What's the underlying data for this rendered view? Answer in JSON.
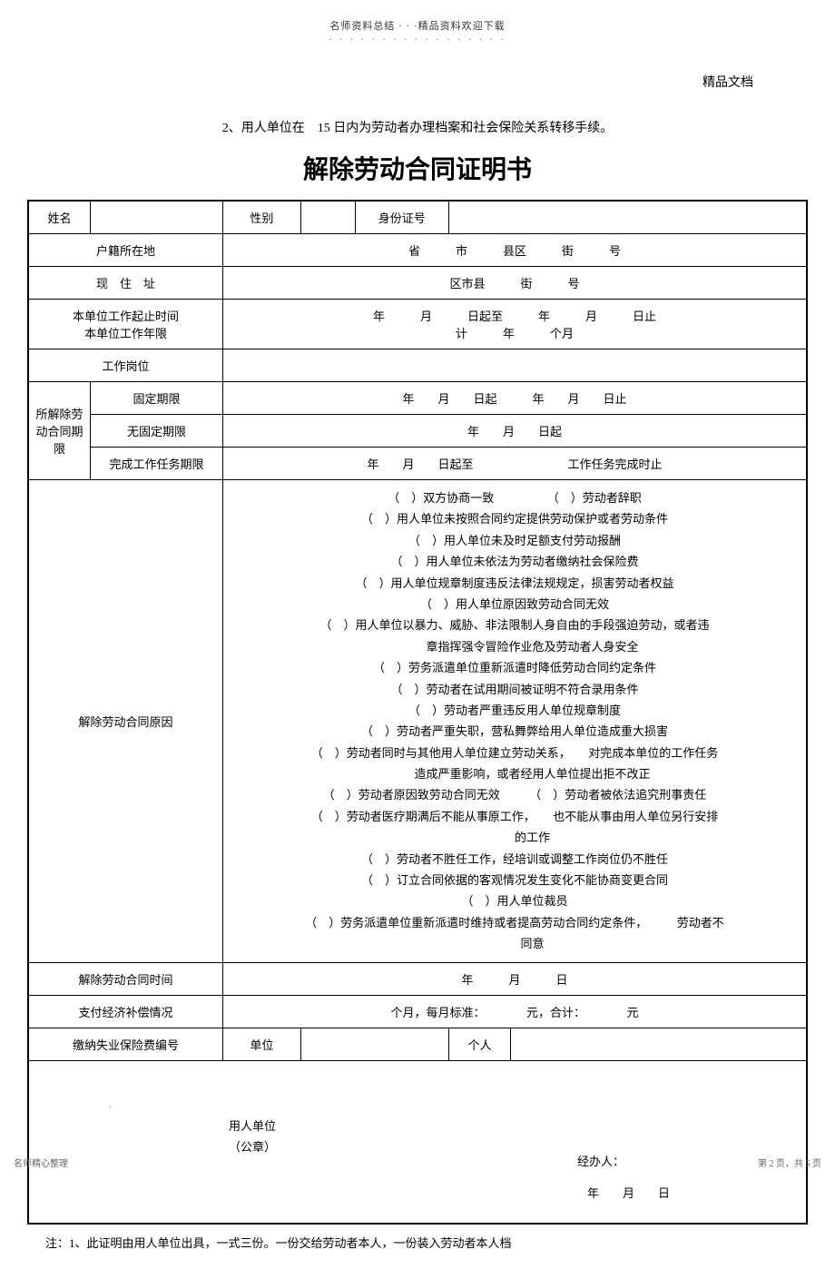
{
  "header": {
    "small_text": "名师资料总结 · · ·精品资料欢迎下载",
    "dots": "· · · · · · · · · · · · · · · · ·"
  },
  "corner": "精品文档",
  "intro": "2、用人单位在　15 日内为劳动者办理档案和社会保险关系转移手续。",
  "title": "解除劳动合同证明书",
  "row1": {
    "name_label": "姓名",
    "gender_label": "性别",
    "id_label": "身份证号"
  },
  "row2": {
    "label": "户籍所在地",
    "content": "省　　　市　　　县区　　　街　　　号"
  },
  "row3": {
    "label": "现　住　址",
    "content": "区市县　　　街　　　号"
  },
  "row4": {
    "label1": "本单位工作起止时间",
    "label2": "本单位工作年限",
    "content1": "年　　　月　　　日起至　　　年　　　月　　　日止",
    "content2": "计　　　年　　　个月"
  },
  "row5": {
    "label": "工作岗位"
  },
  "contract_period": {
    "main_label": "所解除劳动合同期限",
    "fixed_label": "固定期限",
    "fixed_content": "年　　月　　日起　　　年　　月　　日止",
    "unfixed_label": "无固定期限",
    "unfixed_content": "年　　月　　日起",
    "task_label": "完成工作任务期限",
    "task_content": "年　　月　　日起至　　　　　　　　工作任务完成时止"
  },
  "reasons": {
    "label": "解除劳动合同原因",
    "items": [
      "（　）双方协商一致　　　　　（　）劳动者辞职",
      "（　）用人单位未按照合同约定提供劳动保护或者劳动条件",
      "（　）用人单位未及时足额支付劳动报酬",
      "（　）用人单位未依法为劳动者缴纳社会保险费",
      "（　）用人单位规章制度违反法律法规规定，损害劳动者权益",
      "（　）用人单位原因致劳动合同无效",
      "（　）用人单位以暴力、威胁、非法限制人身自由的手段强迫劳动，或者违",
      "　　　章指挥强令冒险作业危及劳动者人身安全",
      "（　）劳务派遣单位重新派遣时降低劳动合同约定条件",
      "（　）劳动者在试用期间被证明不符合录用条件",
      "（　）劳动者严重违反用人单位规章制度",
      "（　）劳动者严重失职，营私舞弊给用人单位造成重大损害",
      "（　）劳动者同时与其他用人单位建立劳动关系，　　对完成本单位的工作任务",
      "　　　造成严重影响，或者经用人单位提出拒不改正",
      "（　）劳动者原因致劳动合同无效　　　（　）劳动者被依法追究刑事责任",
      "（　）劳动者医疗期满后不能从事原工作，　　也不能从事由用人单位另行安排",
      "　　　的工作",
      "（　）劳动者不胜任工作，经培训或调整工作岗位仍不胜任",
      "（　）订立合同依据的客观情况发生变化不能协商变更合同",
      "（　）用人单位裁员",
      "（　）劳务派遣单位重新派遣时维持或者提高劳动合同约定条件，　　　劳动者不",
      "　　　同意"
    ]
  },
  "termination_time": {
    "label": "解除劳动合同时间",
    "content": "年　　　月　　　日"
  },
  "compensation": {
    "label": "支付经济补偿情况",
    "content": "个月，每月标准：　　　　元，合计：　　　　元"
  },
  "insurance": {
    "label": "缴纳失业保险费编号",
    "unit_label": "单位",
    "personal_label": "个人"
  },
  "signature": {
    "seal1": "用人单位",
    "seal2": "（公章）",
    "handler": "经办人：",
    "date": "年　　月　　日"
  },
  "footer_note": "注：1、此证明由用人单位出具，一式三份。一份交给劳动者本人，一份装入劳动者本人档",
  "bottom_left": "名师精心整理",
  "bottom_right": "第 2 页，共 5 页",
  "dot": "."
}
